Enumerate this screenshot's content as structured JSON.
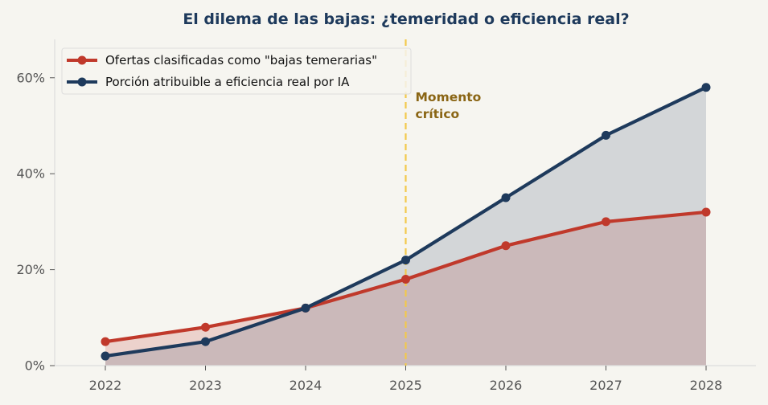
{
  "chart_data": {
    "type": "line",
    "title": "El dilema de las bajas: ¿temeridad o eficiencia real?",
    "xlabel": "",
    "ylabel": "",
    "categories": [
      "2022",
      "2023",
      "2024",
      "2025",
      "2026",
      "2027",
      "2028"
    ],
    "y_tick_labels": [
      "0%",
      "20%",
      "40%",
      "60%"
    ],
    "y_ticks": [
      0,
      20,
      40,
      60
    ],
    "ylim": [
      0,
      68
    ],
    "series": [
      {
        "name": "Ofertas clasificadas como \"bajas temerarias\"",
        "values": [
          5,
          8,
          12,
          18,
          25,
          30,
          32
        ],
        "color": "#c0392b",
        "fill": "area"
      },
      {
        "name": "Porción atribuible a eficiencia real por IA",
        "values": [
          2,
          5,
          12,
          22,
          35,
          48,
          58
        ],
        "color": "#1e3a5c",
        "fill": "area"
      }
    ],
    "annotation": {
      "x": "2025",
      "line_color": "#f2c94c",
      "line_style": "dashed",
      "text_lines": [
        "Momento",
        "crítico"
      ],
      "text_color": "#8a6514"
    },
    "legend_position": "top-left",
    "grid": false
  }
}
